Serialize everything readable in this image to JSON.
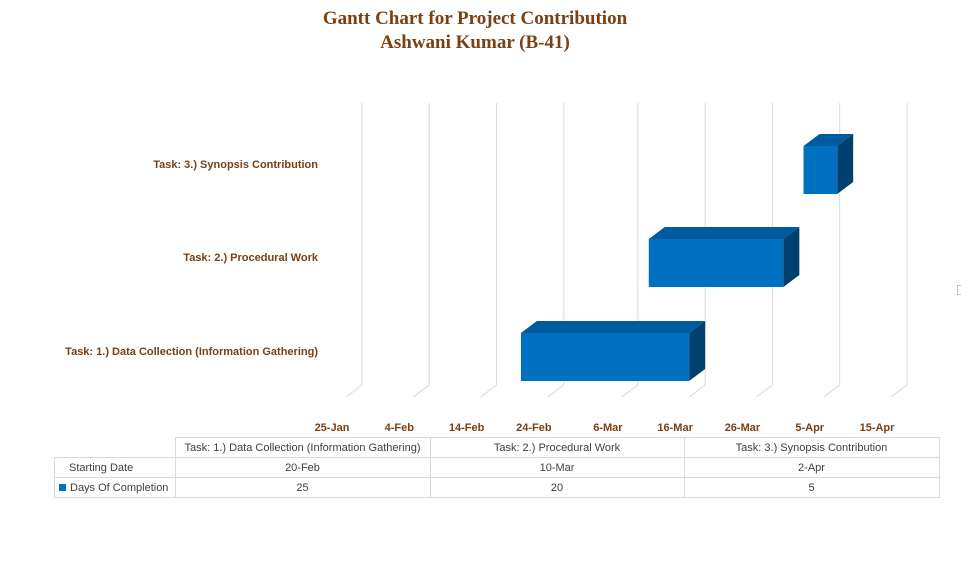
{
  "chart_data": {
    "type": "bar",
    "orientation": "horizontal",
    "style": "3d-stacked-gantt",
    "title": "Gantt Chart for Project Contribution",
    "subtitle": "Ashwani Kumar (B-41)",
    "categories": [
      "Task: 1.) Data Collection (Information Gathering)",
      "Task: 2.) Procedural Work",
      "Task: 3.) Synopsis Contribution"
    ],
    "series": [
      {
        "name": "Starting Date",
        "values": [
          "20-Feb",
          "10-Mar",
          "2-Apr"
        ],
        "visible": false
      },
      {
        "name": "Days Of Completion",
        "values": [
          25,
          20,
          5
        ],
        "color": "#0070c0"
      }
    ],
    "x_ticks": [
      "25-Jan",
      "4-Feb",
      "14-Feb",
      "24-Feb",
      "6-Mar",
      "16-Mar",
      "26-Mar",
      "5-Apr",
      "15-Apr"
    ],
    "xlim": [
      "25-Jan",
      "15-Apr"
    ],
    "grid": true,
    "legend": "data-table-below",
    "data_table": {
      "columns": [
        "Task: 1.) Data Collection (Information Gathering)",
        "Task: 2.) Procedural Work",
        "Task: 3.) Synopsis Contribution"
      ],
      "rows": [
        {
          "label": "Starting Date",
          "values": [
            "20-Feb",
            "10-Mar",
            "2-Apr"
          ]
        },
        {
          "label": "Days Of Completion",
          "values": [
            "25",
            "20",
            "5"
          ]
        }
      ]
    }
  }
}
